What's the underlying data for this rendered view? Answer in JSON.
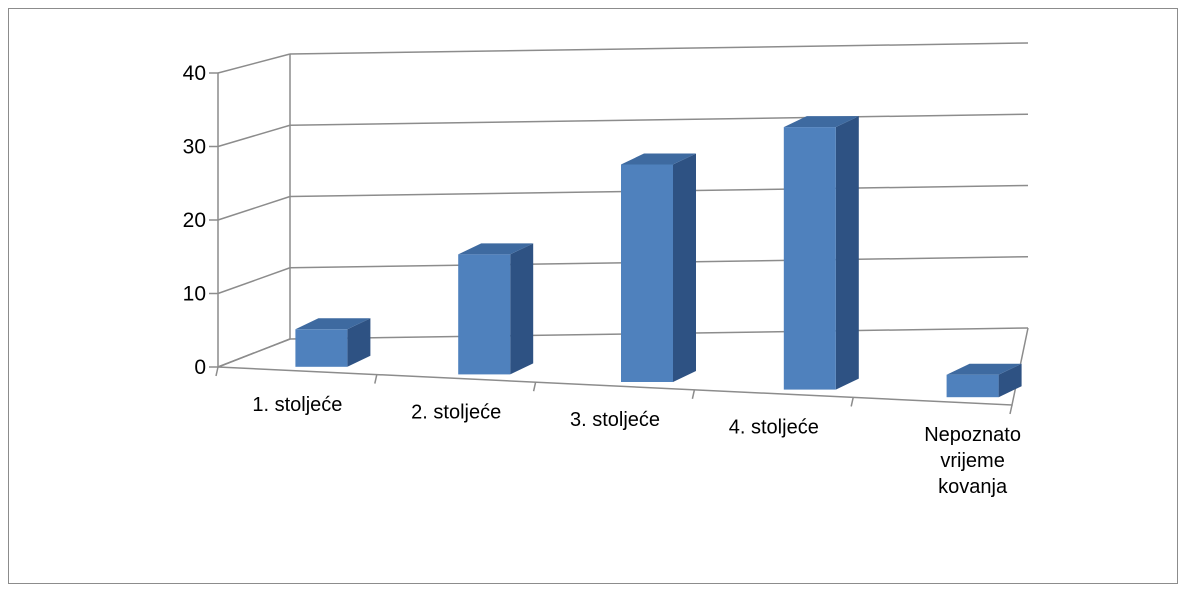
{
  "chart_data": {
    "type": "bar",
    "title": "",
    "xlabel": "",
    "ylabel": "",
    "categories": [
      [
        "1. stoljeće"
      ],
      [
        "2. stoljeće"
      ],
      [
        "3. stoljeće"
      ],
      [
        "4. stoljeće"
      ],
      [
        "Nepoznato",
        "vrijeme",
        "kovanja"
      ]
    ],
    "values": [
      5,
      16,
      29,
      35,
      3
    ],
    "ylim": [
      0,
      40
    ],
    "yticks": [
      "0",
      "10",
      "20",
      "30",
      "40"
    ],
    "grid": true,
    "legend": "none",
    "colors": {
      "front": "#4f81bd",
      "top": "#3e6aa0",
      "side": "#2e5283",
      "grid": "#8c8c8c"
    }
  }
}
